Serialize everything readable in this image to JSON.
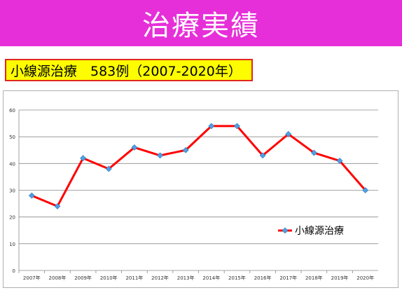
{
  "header": {
    "title": "治療実績"
  },
  "subtitle": {
    "text": "小線源治療　583例（2007-2020年）"
  },
  "colors": {
    "banner": "#e62fd8",
    "subtitle_bg": "#fdfd00",
    "subtitle_border": "#e0281e",
    "line": "#ff0000",
    "marker": "#4f9fe0"
  },
  "chart_data": {
    "type": "line",
    "categories": [
      "2007年",
      "2008年",
      "2009年",
      "2010年",
      "2011年",
      "2012年",
      "2013年",
      "2014年",
      "2015年",
      "2016年",
      "2017年",
      "2018年",
      "2019年",
      "2020年"
    ],
    "series": [
      {
        "name": "小線源治療",
        "values": [
          28,
          24,
          42,
          38,
          46,
          43,
          45,
          54,
          54,
          43,
          51,
          44,
          41,
          30
        ]
      }
    ],
    "ylim": [
      0,
      60
    ],
    "yticks": [
      0,
      10,
      20,
      30,
      40,
      50,
      60
    ],
    "grid": true,
    "legend": "center-right",
    "xlabel": "",
    "ylabel": "",
    "title": ""
  }
}
